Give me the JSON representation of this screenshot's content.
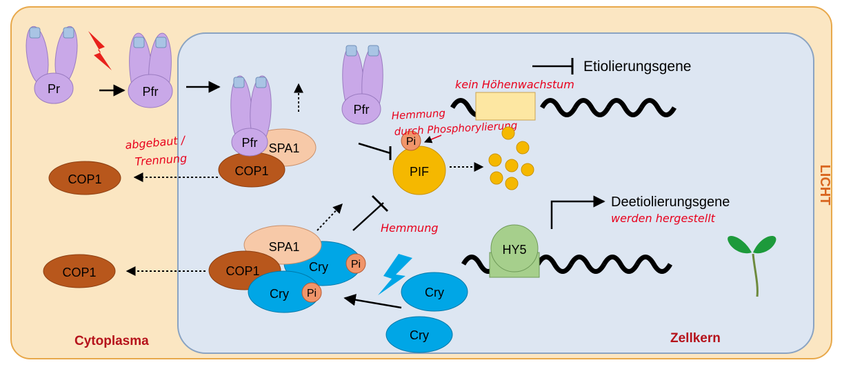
{
  "compartments": {
    "cytoplasm": "Cytoplasma",
    "nucleus": "Zellkern",
    "light": "LICHT"
  },
  "molecules": {
    "pr": "Pr",
    "pfr_a": "Pfr",
    "pfr_b": "Pfr",
    "pfr_c": "Pfr",
    "pfr_d": "Pfr",
    "spa1_top": "SPA1",
    "cop1_top": "COP1",
    "cop1_left_top": "COP1",
    "pi_top": "Pi",
    "pif": "PIF",
    "spa1_bottom": "SPA1",
    "cop1_bottom": "COP1",
    "cry_a": "Cry",
    "pi_a": "Pi",
    "cry_b": "Cry",
    "pi_b": "Pi",
    "cry_c": "Cry",
    "cry_d": "Cry",
    "cop1_left_bottom": "COP1",
    "hy5": "HY5"
  },
  "genes": {
    "etiolation": "Etiolierungsgene",
    "deetiolation": "Deetiolierungsgene"
  },
  "annotations": {
    "no_height_growth": "kein Höhenwachstum",
    "inhibition_phospho_1": "Hemmung",
    "inhibition_phospho_2": "durch Phosphorylierung",
    "degraded_1": "abgebaut /",
    "degraded_2": "Trennung",
    "inhibition": "Hemmung",
    "produced": "werden hergestellt"
  },
  "colors": {
    "cytoplasm_fill": "#fbe6c2",
    "cytoplasm_border": "#e8a84a",
    "nucleus_fill": "#dde6f2",
    "nucleus_border": "#8aa3c2",
    "phytochrome": "#c9a8e8",
    "phytochrome_chromophore": "#a9c4e4",
    "spa1": "#f7c9a8",
    "cop1": "#b8571c",
    "cry": "#00a6e6",
    "pi": "#f0956a",
    "pif": "#f5b800",
    "hy5": "#a6cf8c",
    "lightning": "#e8221c",
    "blue_light": "#00a6e6",
    "handwriting": "#e8001c"
  }
}
